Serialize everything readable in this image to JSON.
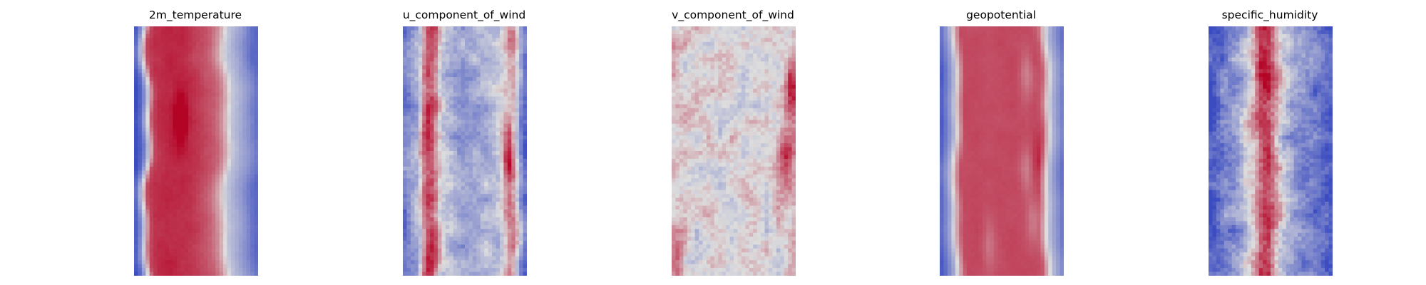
{
  "figure": {
    "colormap": "coolwarm",
    "colors": {
      "cold": "#3b4cc0",
      "neutral": "#dddddd",
      "warm": "#b40426"
    }
  },
  "chart_data": [
    {
      "type": "heatmap",
      "title": "2m_temperature",
      "pattern": "warm_band",
      "grid": {
        "rows": 64,
        "cols": 32
      },
      "value_range": [
        0,
        1
      ],
      "profile": [
        0.0,
        0.12,
        0.42,
        0.84,
        0.9,
        0.91,
        0.92,
        0.92,
        0.91,
        0.91,
        0.9,
        0.88,
        0.85,
        0.82,
        0.78,
        0.7,
        0.58,
        0.42,
        0.36,
        0.3,
        0.24,
        0.16,
        0.1
      ],
      "wobble": 0.6,
      "noise": 0.03,
      "hot_spots": [
        {
          "u": 0.38,
          "v": 0.37,
          "r": 0.05,
          "amp": 0.25
        }
      ]
    },
    {
      "type": "heatmap",
      "title": "u_component_of_wind",
      "pattern": "streaky",
      "grid": {
        "rows": 64,
        "cols": 32
      },
      "value_range": [
        0,
        1
      ],
      "profile": [
        0.17,
        0.24,
        0.3,
        0.36,
        0.72,
        0.88,
        0.8,
        0.55,
        0.4,
        0.36,
        0.32,
        0.3,
        0.3,
        0.3,
        0.32,
        0.34,
        0.36,
        0.38,
        0.42,
        0.48,
        0.62,
        0.7,
        0.5,
        0.24,
        0.08
      ],
      "wobble": 0.3,
      "noise": 0.16,
      "hot_spots": [
        {
          "u": 0.85,
          "v": 0.55,
          "r": 0.05,
          "amp": 0.3
        }
      ]
    },
    {
      "type": "heatmap",
      "title": "v_component_of_wind",
      "pattern": "speckle",
      "grid": {
        "rows": 64,
        "cols": 32
      },
      "value_range": [
        0,
        1
      ],
      "profile": [
        0.56,
        0.54,
        0.52,
        0.5,
        0.5,
        0.5,
        0.5,
        0.5,
        0.5,
        0.5,
        0.5,
        0.5,
        0.5,
        0.5,
        0.52,
        0.56,
        0.62
      ],
      "wobble": 0.1,
      "noise": 0.18,
      "hot_spots": [
        {
          "u": 0.92,
          "v": 0.52,
          "r": 0.06,
          "amp": 0.28
        },
        {
          "u": 0.97,
          "v": 0.24,
          "r": 0.05,
          "amp": 0.3
        },
        {
          "u": 0.05,
          "v": 0.96,
          "r": 0.05,
          "amp": 0.2
        }
      ]
    },
    {
      "type": "heatmap",
      "title": "geopotential",
      "pattern": "warm_band",
      "grid": {
        "rows": 64,
        "cols": 32
      },
      "value_range": [
        0,
        1
      ],
      "profile": [
        0.05,
        0.18,
        0.34,
        0.62,
        0.84,
        0.84,
        0.84,
        0.84,
        0.84,
        0.84,
        0.84,
        0.84,
        0.84,
        0.84,
        0.84,
        0.84,
        0.84,
        0.8,
        0.54,
        0.34,
        0.24,
        0.14
      ],
      "wobble": 0.35,
      "noise": 0.02,
      "hot_spots": [
        {
          "u": 0.82,
          "v": 0.55,
          "r": 0.06,
          "amp": 0.15
        },
        {
          "u": 0.7,
          "v": 0.2,
          "r": 0.05,
          "amp": -0.12
        },
        {
          "u": 0.7,
          "v": 0.58,
          "r": 0.05,
          "amp": -0.12
        },
        {
          "u": 0.75,
          "v": 0.78,
          "r": 0.05,
          "amp": -0.12
        },
        {
          "u": 0.4,
          "v": 0.88,
          "r": 0.05,
          "amp": -0.1
        }
      ]
    },
    {
      "type": "heatmap",
      "title": "specific_humidity",
      "pattern": "narrow_core",
      "grid": {
        "rows": 64,
        "cols": 32
      },
      "value_range": [
        0,
        1
      ],
      "profile": [
        0.0,
        0.05,
        0.14,
        0.22,
        0.2,
        0.24,
        0.3,
        0.4,
        0.55,
        0.72,
        0.86,
        0.86,
        0.72,
        0.56,
        0.42,
        0.32,
        0.26,
        0.22,
        0.2,
        0.18,
        0.14,
        0.1,
        0.05,
        0.02
      ],
      "wobble": 0.25,
      "noise": 0.2,
      "hot_spots": [
        {
          "u": 0.42,
          "v": 0.15,
          "r": 0.05,
          "amp": 0.15
        }
      ]
    }
  ]
}
